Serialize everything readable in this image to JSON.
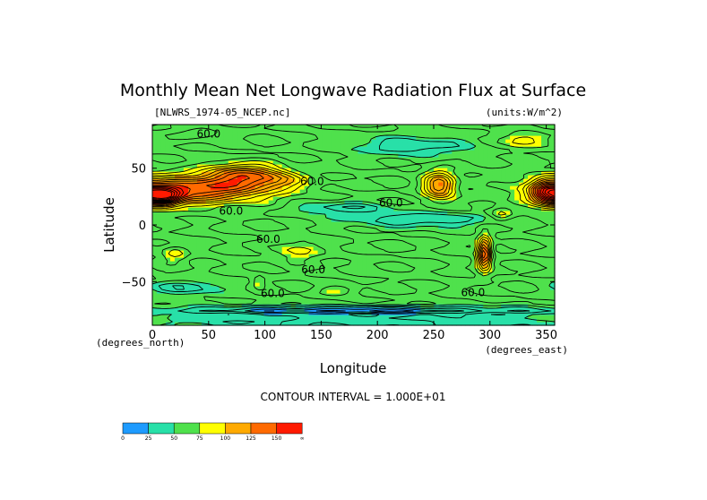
{
  "chart_data": {
    "type": "heatmap",
    "title": "Monthly Mean Net Longwave Radiation Flux at Surface",
    "source_label": "[NLWRS_1974-05_NCEP.nc]",
    "units_label": "(units:W/m^2)",
    "xlabel": "Longitude",
    "ylabel": "Latitude",
    "x_unit_label": "(degrees_east)",
    "y_unit_label": "(degrees_north)",
    "xlim": [
      0,
      357.5
    ],
    "ylim": [
      -88.5,
      88.5
    ],
    "x_ticks": [
      0,
      50,
      100,
      150,
      200,
      250,
      300,
      350
    ],
    "y_ticks": [
      50,
      0,
      -50
    ],
    "contour_interval_text": "CONTOUR INTERVAL = 1.000E+01",
    "contour_labels": [
      {
        "text": "60.0",
        "lon": 50,
        "lat": 80
      },
      {
        "text": "60.0",
        "lon": 70,
        "lat": 12
      },
      {
        "text": "60.0",
        "lon": 142,
        "lat": 38
      },
      {
        "text": "60.0",
        "lon": 212,
        "lat": 19
      },
      {
        "text": "60.0",
        "lon": 103,
        "lat": -13
      },
      {
        "text": "60.0",
        "lon": 143,
        "lat": -40
      },
      {
        "text": "60.0",
        "lon": 107,
        "lat": -61
      },
      {
        "text": "60.0",
        "lon": 285,
        "lat": -60
      }
    ],
    "colorbar": {
      "levels": [
        "0",
        "25",
        "50",
        "75",
        "100",
        "125",
        "150",
        "∞"
      ],
      "colors": [
        "#1e9bff",
        "#28e0a8",
        "#4fe14c",
        "#ffff00",
        "#ffaa00",
        "#ff6a00",
        "#ff1a00"
      ]
    },
    "field_features": [
      {
        "lon": 40,
        "lat": 32,
        "rlon": 60,
        "rlat": 12,
        "value": 150
      },
      {
        "lon": 10,
        "lat": 25,
        "rlon": 15,
        "rlat": 8,
        "value": 160
      },
      {
        "lon": 80,
        "lat": 45,
        "rlon": 30,
        "rlat": 10,
        "value": 120
      },
      {
        "lon": 110,
        "lat": 40,
        "rlon": 25,
        "rlat": 8,
        "value": 95
      },
      {
        "lon": 255,
        "lat": 35,
        "rlon": 14,
        "rlat": 12,
        "value": 130
      },
      {
        "lon": 350,
        "lat": 28,
        "rlon": 14,
        "rlat": 10,
        "value": 140
      },
      {
        "lon": 330,
        "lat": 75,
        "rlon": 20,
        "rlat": 7,
        "value": 90
      },
      {
        "lon": 40,
        "lat": 80,
        "rlon": 25,
        "rlat": 5,
        "value": 80
      },
      {
        "lon": 20,
        "lat": -25,
        "rlon": 12,
        "rlat": 8,
        "value": 85
      },
      {
        "lon": 130,
        "lat": -22,
        "rlon": 20,
        "rlat": 10,
        "value": 85
      },
      {
        "lon": 95,
        "lat": -50,
        "rlon": 6,
        "rlat": 6,
        "value": 80
      },
      {
        "lon": 165,
        "lat": -58,
        "rlon": 18,
        "rlat": 4,
        "value": 80
      },
      {
        "lon": 295,
        "lat": -25,
        "rlon": 6,
        "rlat": 14,
        "value": 150
      },
      {
        "lon": 310,
        "lat": 10,
        "rlon": 10,
        "rlat": 6,
        "value": 85
      },
      {
        "lon": 240,
        "lat": 5,
        "rlon": 60,
        "rlat": 6,
        "value": 28
      },
      {
        "lon": 170,
        "lat": 15,
        "rlon": 40,
        "rlat": 5,
        "value": 30
      },
      {
        "lon": 30,
        "lat": -55,
        "rlon": 30,
        "rlat": 6,
        "value": 30
      },
      {
        "lon": 230,
        "lat": 70,
        "rlon": 50,
        "rlat": 8,
        "value": 30
      },
      {
        "lon": 180,
        "lat": -85,
        "rlon": 180,
        "rlat": 8,
        "value": 35
      },
      {
        "lon": 180,
        "lat": -75,
        "rlon": 180,
        "rlat": 3,
        "value": 10
      },
      {
        "lon": 200,
        "lat": -40,
        "rlon": 30,
        "rlat": 10,
        "value": 62
      }
    ],
    "background_value": 60
  }
}
